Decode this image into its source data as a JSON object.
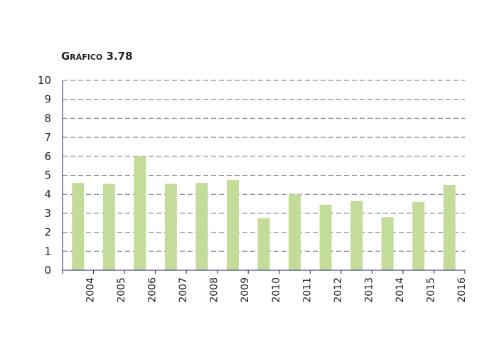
{
  "chart_data": {
    "type": "bar",
    "title": "Gráfico 3.78",
    "categories": [
      "2004",
      "2005",
      "2006",
      "2007",
      "2008",
      "2009",
      "2010",
      "2011",
      "2012",
      "2013",
      "2014",
      "2015",
      "2016"
    ],
    "values": [
      4.6,
      4.55,
      6.0,
      4.55,
      4.6,
      4.75,
      2.75,
      4.0,
      3.45,
      3.65,
      2.8,
      3.6,
      4.5
    ],
    "ylim": [
      0,
      10
    ],
    "yticks": [
      "0",
      "1",
      "2",
      "3",
      "4",
      "5",
      "6",
      "7",
      "8",
      "9",
      "10"
    ],
    "grid": true,
    "colors": {
      "bar": "#c3dc99",
      "grid": "#6b6f9a",
      "axis": "#1a1f5c"
    }
  }
}
